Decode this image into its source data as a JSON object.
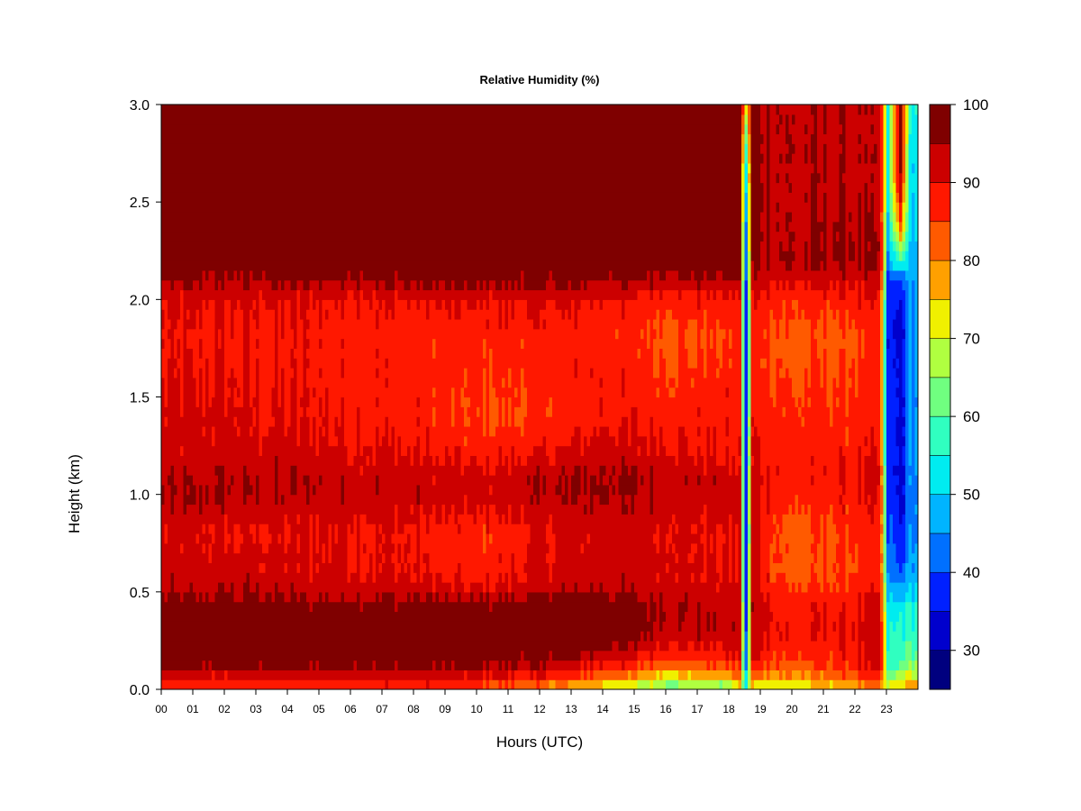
{
  "chart_data": {
    "type": "heatmap",
    "title": "Relative Humidity (%)",
    "xlabel": "Hours (UTC)",
    "ylabel": "Height (km)",
    "xlim": [
      0,
      24
    ],
    "ylim": [
      0,
      3.0
    ],
    "x_ticks": [
      "00",
      "01",
      "02",
      "03",
      "04",
      "05",
      "06",
      "07",
      "08",
      "09",
      "10",
      "11",
      "12",
      "13",
      "14",
      "15",
      "16",
      "17",
      "18",
      "19",
      "20",
      "21",
      "22",
      "23"
    ],
    "y_ticks": [
      "0.0",
      "0.5",
      "1.0",
      "1.5",
      "2.0",
      "2.5",
      "3.0"
    ],
    "colorbar": {
      "min": 25,
      "max": 100,
      "step": 5,
      "tick_values": [
        30,
        40,
        50,
        60,
        70,
        80,
        90,
        100
      ],
      "tick_labels": [
        "30",
        "40",
        "50",
        "60",
        "70",
        "80",
        "90",
        "100"
      ],
      "colors": [
        "#00007f",
        "#0000cd",
        "#0020ff",
        "#0070ff",
        "#00b4ff",
        "#00ecf0",
        "#30ffc0",
        "#70ff80",
        "#b0ff40",
        "#f0f000",
        "#ffa000",
        "#ff5a00",
        "#ff1800",
        "#cc0000",
        "#7f0000"
      ]
    },
    "heights_km": [
      0.0,
      0.05,
      0.1,
      0.2,
      0.3,
      0.45,
      0.5,
      0.6,
      0.8,
      1.0,
      1.1,
      1.2,
      1.4,
      1.6,
      1.8,
      2.0,
      2.1,
      2.2,
      2.4,
      2.6,
      2.8,
      3.0
    ],
    "profiles": [
      {
        "hour": 0.0,
        "rh": [
          84,
          88,
          96,
          99,
          99,
          98,
          94,
          92,
          91,
          95,
          94,
          92,
          91,
          90,
          89,
          90,
          95,
          99,
          99,
          99,
          99,
          99
        ]
      },
      {
        "hour": 2.0,
        "rh": [
          86,
          88,
          96,
          99,
          99,
          98,
          94,
          93,
          90,
          95,
          94,
          92,
          91,
          90,
          89,
          91,
          95,
          99,
          99,
          99,
          99,
          99
        ]
      },
      {
        "hour": 4.0,
        "rh": [
          86,
          88,
          96,
          99,
          99,
          97,
          93,
          92,
          90,
          94,
          94,
          92,
          90,
          89,
          89,
          90,
          96,
          99,
          99,
          99,
          99,
          99
        ]
      },
      {
        "hour": 6.0,
        "rh": [
          87,
          90,
          96,
          99,
          99,
          97,
          93,
          91,
          90,
          94,
          93,
          91,
          89,
          89,
          88,
          90,
          96,
          99,
          99,
          99,
          99,
          99
        ]
      },
      {
        "hour": 8.0,
        "rh": [
          87,
          90,
          96,
          99,
          99,
          97,
          93,
          90,
          89,
          93,
          93,
          90,
          88,
          88,
          87,
          90,
          96,
          99,
          99,
          99,
          99,
          99
        ]
      },
      {
        "hour": 10.0,
        "rh": [
          85,
          88,
          95,
          98,
          98,
          96,
          91,
          87,
          86,
          92,
          91,
          88,
          84,
          86,
          87,
          90,
          97,
          99,
          99,
          99,
          99,
          99
        ]
      },
      {
        "hour": 12.0,
        "rh": [
          80,
          86,
          93,
          98,
          99,
          98,
          94,
          91,
          90,
          94,
          94,
          90,
          85,
          87,
          87,
          91,
          97,
          99,
          99,
          99,
          99,
          99
        ]
      },
      {
        "hour": 14.0,
        "rh": [
          72,
          80,
          88,
          96,
          99,
          98,
          95,
          93,
          92,
          96,
          96,
          93,
          89,
          89,
          87,
          90,
          96,
          99,
          99,
          99,
          99,
          99
        ]
      },
      {
        "hour": 16.0,
        "rh": [
          62,
          70,
          80,
          90,
          95,
          96,
          93,
          92,
          91,
          94,
          94,
          91,
          88,
          86,
          84,
          88,
          95,
          99,
          99,
          99,
          99,
          99
        ]
      },
      {
        "hour": 18.0,
        "rh": [
          62,
          72,
          82,
          90,
          93,
          93,
          91,
          90,
          90,
          92,
          92,
          89,
          88,
          87,
          85,
          88,
          95,
          99,
          99,
          99,
          99,
          99
        ]
      },
      {
        "hour": 18.35,
        "rh": [
          70,
          80,
          86,
          92,
          94,
          93,
          91,
          90,
          90,
          92,
          91,
          89,
          88,
          87,
          86,
          88,
          94,
          98,
          98,
          98,
          98,
          98
        ]
      },
      {
        "hour": 18.55,
        "rh": [
          55,
          55,
          45,
          42,
          40,
          38,
          38,
          38,
          38,
          38,
          38,
          38,
          38,
          38,
          38,
          38,
          40,
          42,
          45,
          50,
          60,
          75
        ]
      },
      {
        "hour": 18.75,
        "rh": [
          72,
          78,
          86,
          92,
          94,
          94,
          92,
          91,
          91,
          93,
          92,
          90,
          89,
          88,
          87,
          89,
          93,
          96,
          96,
          96,
          96,
          96
        ]
      },
      {
        "hour": 20.0,
        "rh": [
          70,
          76,
          82,
          86,
          89,
          88,
          85,
          83,
          82,
          86,
          88,
          87,
          86,
          84,
          83,
          86,
          91,
          95,
          94,
          94,
          94,
          94
        ]
      },
      {
        "hour": 21.5,
        "rh": [
          74,
          80,
          85,
          88,
          90,
          88,
          86,
          85,
          85,
          88,
          90,
          88,
          86,
          85,
          83,
          87,
          92,
          96,
          95,
          94,
          94,
          94
        ]
      },
      {
        "hour": 22.8,
        "rh": [
          80,
          85,
          90,
          93,
          92,
          91,
          89,
          88,
          88,
          90,
          90,
          89,
          88,
          87,
          86,
          89,
          92,
          95,
          94,
          93,
          93,
          93
        ]
      },
      {
        "hour": 23.05,
        "rh": [
          70,
          65,
          58,
          55,
          55,
          52,
          48,
          44,
          40,
          40,
          38,
          38,
          38,
          38,
          36,
          36,
          38,
          45,
          50,
          55,
          55,
          55
        ]
      },
      {
        "hour": 23.45,
        "rh": [
          75,
          70,
          62,
          58,
          56,
          52,
          46,
          40,
          35,
          33,
          33,
          33,
          33,
          33,
          33,
          35,
          40,
          60,
          85,
          95,
          98,
          98
        ]
      },
      {
        "hour": 23.75,
        "rh": [
          80,
          75,
          65,
          60,
          56,
          54,
          50,
          48,
          44,
          44,
          44,
          45,
          45,
          45,
          45,
          45,
          46,
          48,
          50,
          52,
          54,
          55
        ]
      }
    ],
    "grid": false,
    "legend": "colorbar-right"
  }
}
